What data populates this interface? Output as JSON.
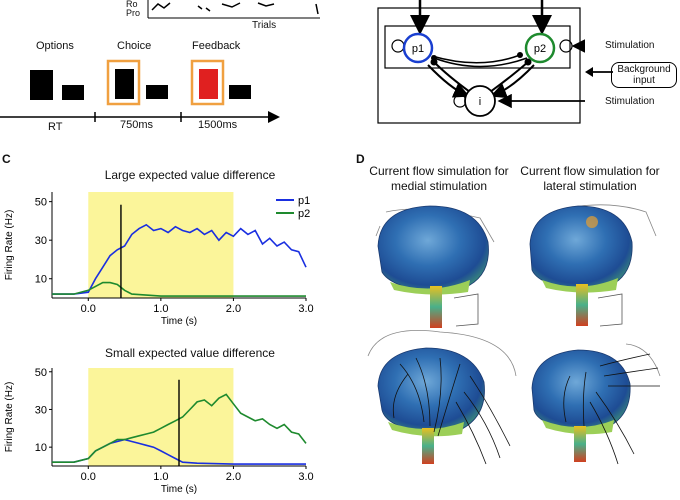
{
  "panelA": {
    "ylabel_partial": "Ro Pro",
    "xlabel": "Trials",
    "timeline": {
      "options_label": "Options",
      "choice_label": "Choice",
      "feedback_label": "Feedback",
      "rt_label": "RT",
      "t1_label": "750ms",
      "t2_label": "1500ms",
      "highlight_color": "#f0a040",
      "feedback_color": "#e02020"
    }
  },
  "panelB": {
    "p1_label": "p1",
    "p2_label": "p2",
    "i_label": "i",
    "stim_top": "Stimulation",
    "background_input": "Background input",
    "stim_bottom": "Stimulation",
    "p1_color": "#1a3fd0",
    "p2_color": "#1e8a2e"
  },
  "panelC": {
    "letter": "C",
    "series_colors": {
      "p1": "#1a2fe0",
      "p2": "#1e8a2e"
    },
    "highlight_color": "#fbf59a",
    "charts": [
      {
        "type": "line",
        "title": "Large expected value difference",
        "xlabel": "Time (s)",
        "ylabel": "Firing Rate (Hz)",
        "xlim": [
          -0.5,
          3.0
        ],
        "ylim": [
          0,
          55
        ],
        "xticks": [
          "0.0",
          "1.0",
          "2.0",
          "3.0"
        ],
        "yticks": [
          "10",
          "30",
          "50"
        ],
        "highlight_x": [
          0.0,
          2.0
        ],
        "marker_x": 0.45,
        "legend": [
          "p1",
          "p2"
        ],
        "series": [
          {
            "name": "p1",
            "x": [
              -0.5,
              -0.2,
              0.0,
              0.1,
              0.2,
              0.3,
              0.4,
              0.5,
              0.6,
              0.7,
              0.8,
              0.9,
              1.0,
              1.1,
              1.2,
              1.3,
              1.4,
              1.5,
              1.6,
              1.7,
              1.8,
              1.9,
              2.0,
              2.1,
              2.2,
              2.3,
              2.4,
              2.5,
              2.6,
              2.7,
              2.8,
              2.9,
              3.0
            ],
            "y": [
              2,
              2,
              3,
              10,
              16,
              22,
              25,
              27,
              33,
              36,
              38,
              35,
              36,
              34,
              37,
              35,
              34,
              36,
              33,
              35,
              30,
              34,
              32,
              36,
              33,
              35,
              28,
              31,
              27,
              29,
              25,
              24,
              16
            ]
          },
          {
            "name": "p2",
            "x": [
              -0.5,
              -0.2,
              0.0,
              0.1,
              0.2,
              0.3,
              0.4,
              0.5,
              0.6,
              0.8,
              1.0,
              1.5,
              2.0,
              2.5,
              3.0
            ],
            "y": [
              2,
              2,
              4,
              6,
              8,
              8,
              7,
              4,
              2,
              1.5,
              1,
              1,
              1,
              1,
              1
            ]
          }
        ]
      },
      {
        "type": "line",
        "title": "Small expected value difference",
        "xlabel": "Time (s)",
        "ylabel": "Firing Rate (Hz)",
        "xlim": [
          -0.5,
          3.0
        ],
        "ylim": [
          0,
          52
        ],
        "xticks": [
          "0.0",
          "1.0",
          "2.0",
          "3.0"
        ],
        "yticks": [
          "10",
          "30",
          "50"
        ],
        "highlight_x": [
          0.0,
          2.0
        ],
        "marker_x": 1.25,
        "series": [
          {
            "name": "p1",
            "x": [
              -0.5,
              -0.2,
              0.0,
              0.1,
              0.2,
              0.3,
              0.4,
              0.5,
              0.6,
              0.7,
              0.8,
              0.9,
              1.0,
              1.1,
              1.2,
              1.3,
              1.5,
              2.0,
              2.5,
              3.0
            ],
            "y": [
              2,
              2,
              4,
              8,
              10,
              12,
              13,
              14,
              13,
              12,
              11,
              10,
              8,
              6,
              4,
              2,
              1.5,
              1,
              1,
              1
            ]
          },
          {
            "name": "p2",
            "x": [
              -0.5,
              -0.2,
              0.0,
              0.1,
              0.2,
              0.3,
              0.4,
              0.5,
              0.6,
              0.7,
              0.8,
              0.9,
              1.0,
              1.1,
              1.2,
              1.3,
              1.4,
              1.5,
              1.6,
              1.7,
              1.8,
              1.9,
              2.0,
              2.1,
              2.2,
              2.3,
              2.4,
              2.5,
              2.6,
              2.7,
              2.8,
              2.9,
              3.0
            ],
            "y": [
              2,
              2,
              4,
              8,
              10,
              12,
              14,
              14,
              15,
              16,
              17,
              18,
              20,
              22,
              24,
              26,
              30,
              34,
              35,
              32,
              36,
              38,
              33,
              28,
              26,
              24,
              25,
              22,
              20,
              22,
              18,
              17,
              12
            ]
          }
        ]
      }
    ]
  },
  "panelD": {
    "letter": "D",
    "left_title": "Current flow simulation for medial stimulation",
    "right_title": "Current flow simulation for lateral stimulation"
  }
}
